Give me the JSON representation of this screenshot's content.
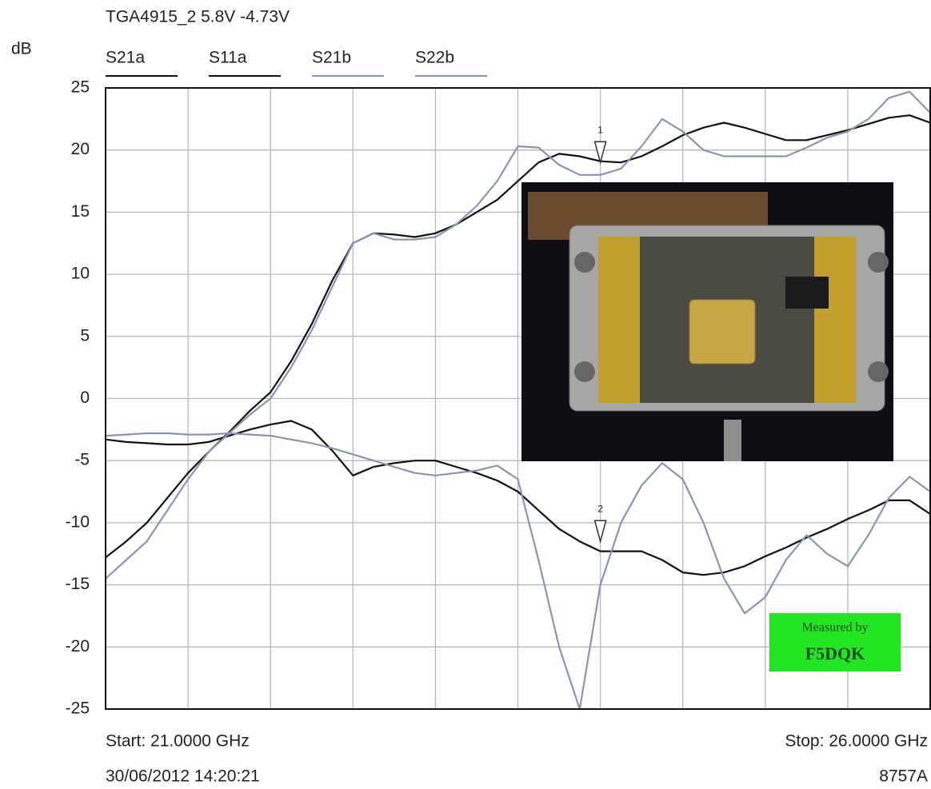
{
  "chart_data": {
    "type": "line",
    "title": "TGA4915_2 5.8V -4.73V",
    "y_label": "dB",
    "start_label": "Start: 21.0000 GHz",
    "stop_label": "Stop: 26.0000 GHz",
    "timestamp": "30/06/2012 14:20:21",
    "instrument": "8757A",
    "annotation": {
      "line1": "Measured by",
      "line2": "F5DQK"
    },
    "markers": [
      {
        "label": "1",
        "x": 24,
        "y": 19
      },
      {
        "label": "2",
        "x": 24,
        "y": -11.5
      }
    ],
    "x": [
      21,
      21.125,
      21.25,
      21.375,
      21.5,
      21.625,
      21.75,
      21.875,
      22,
      22.125,
      22.25,
      22.375,
      22.5,
      22.625,
      22.75,
      22.875,
      23,
      23.125,
      23.25,
      23.375,
      23.5,
      23.625,
      23.75,
      23.875,
      24,
      24.125,
      24.25,
      24.375,
      24.5,
      24.625,
      24.75,
      24.875,
      25,
      25.125,
      25.25,
      25.375,
      25.5,
      25.625,
      25.75,
      25.875,
      26
    ],
    "series": [
      {
        "name": "S21a",
        "color": "#111111",
        "values": [
          -12.8,
          -11.5,
          -10,
          -8,
          -6,
          -4.3,
          -2.7,
          -1,
          0.5,
          3,
          6,
          9.5,
          12.5,
          13.3,
          13.2,
          13,
          13.3,
          14,
          15,
          16,
          17.5,
          19,
          19.7,
          19.5,
          19.1,
          19,
          19.5,
          20.3,
          21.2,
          21.8,
          22.2,
          21.8,
          21.3,
          20.8,
          20.8,
          21.2,
          21.6,
          22.1,
          22.6,
          22.8,
          22.2
        ]
      },
      {
        "name": "S11a",
        "color": "#111111",
        "values": [
          -3.3,
          -3.5,
          -3.6,
          -3.7,
          -3.7,
          -3.5,
          -3,
          -2.5,
          -2.1,
          -1.8,
          -2.5,
          -4.2,
          -6.2,
          -5.5,
          -5.2,
          -5,
          -5,
          -5.5,
          -6,
          -6.6,
          -7.5,
          -9,
          -10.5,
          -11.5,
          -12.3,
          -12.3,
          -12.3,
          -13,
          -14,
          -14.2,
          -14,
          -13.5,
          -12.7,
          -12,
          -11.2,
          -10.5,
          -9.7,
          -9,
          -8.2,
          -8.2,
          -9.3
        ]
      },
      {
        "name": "S21b",
        "color": "#8a94b4",
        "values": [
          -14.5,
          -13,
          -11.5,
          -9,
          -6.5,
          -4.3,
          -2.8,
          -1.3,
          0,
          2.5,
          5.5,
          9,
          12.5,
          13.3,
          12.8,
          12.8,
          13,
          14,
          15.5,
          17.5,
          20.3,
          20.2,
          18.8,
          18,
          18,
          18.5,
          20.3,
          22.5,
          21.5,
          20,
          19.5,
          19.5,
          19.5,
          19.5,
          20.2,
          21,
          21.5,
          22.5,
          24.2,
          24.7,
          23
        ]
      },
      {
        "name": "S22b",
        "color": "#8a94b4",
        "values": [
          -3,
          -2.9,
          -2.8,
          -2.8,
          -2.9,
          -2.9,
          -2.8,
          -2.9,
          -3,
          -3.3,
          -3.6,
          -4,
          -4.5,
          -5,
          -5.5,
          -6,
          -6.2,
          -6,
          -5.8,
          -5.4,
          -6.5,
          -13,
          -20,
          -25,
          -15,
          -10,
          -7,
          -5.2,
          -6.5,
          -10,
          -14.5,
          -17.3,
          -16,
          -13,
          -11,
          -12.5,
          -13.5,
          -11,
          -8,
          -6.3,
          -7.5
        ]
      }
    ],
    "xlim": [
      21,
      26
    ],
    "xticks": [
      21,
      21.5,
      22,
      22.5,
      23,
      23.5,
      24,
      24.5,
      25,
      25.5,
      26
    ],
    "ylim": [
      -25,
      25
    ],
    "yticks": [
      25,
      20,
      15,
      10,
      5,
      0,
      -5,
      -10,
      -15,
      -20,
      -25
    ],
    "grid": true
  }
}
